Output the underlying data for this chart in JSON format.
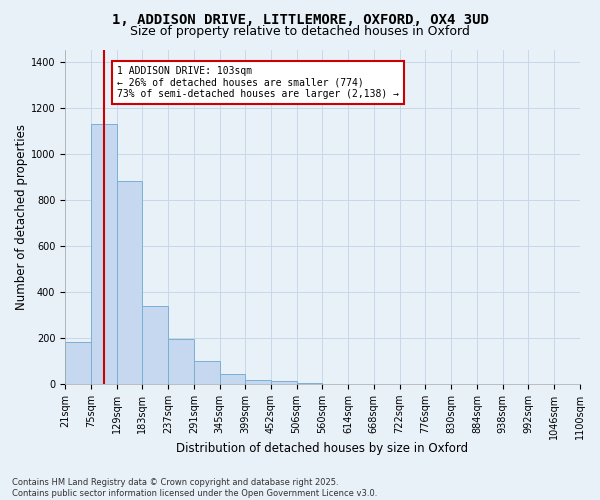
{
  "title_line1": "1, ADDISON DRIVE, LITTLEMORE, OXFORD, OX4 3UD",
  "title_line2": "Size of property relative to detached houses in Oxford",
  "xlabel": "Distribution of detached houses by size in Oxford",
  "ylabel": "Number of detached properties",
  "bar_color": "#c5d8ef",
  "bar_edge_color": "#7aafd4",
  "grid_color": "#c8d8ea",
  "background_color": "#e8f0f8",
  "vline_x": 103,
  "vline_color": "#cc0000",
  "annotation_text": "1 ADDISON DRIVE: 103sqm\n← 26% of detached houses are smaller (774)\n73% of semi-detached houses are larger (2,138) →",
  "annotation_box_color": "#cc0000",
  "bins": [
    21,
    75,
    129,
    183,
    237,
    291,
    345,
    399,
    452,
    506,
    560,
    614,
    668,
    722,
    776,
    830,
    884,
    938,
    992,
    1046,
    1100
  ],
  "bin_labels": [
    "21sqm",
    "75sqm",
    "129sqm",
    "183sqm",
    "237sqm",
    "291sqm",
    "345sqm",
    "399sqm",
    "452sqm",
    "506sqm",
    "560sqm",
    "614sqm",
    "668sqm",
    "722sqm",
    "776sqm",
    "830sqm",
    "884sqm",
    "938sqm",
    "992sqm",
    "1046sqm",
    "1100sqm"
  ],
  "values": [
    185,
    1130,
    880,
    340,
    195,
    100,
    45,
    18,
    12,
    5,
    3,
    1,
    0,
    0,
    0,
    0,
    0,
    0,
    0,
    0
  ],
  "ylim": [
    0,
    1450
  ],
  "yticks": [
    0,
    200,
    400,
    600,
    800,
    1000,
    1200,
    1400
  ],
  "footnote": "Contains HM Land Registry data © Crown copyright and database right 2025.\nContains public sector information licensed under the Open Government Licence v3.0.",
  "title_fontsize": 10,
  "subtitle_fontsize": 9,
  "tick_fontsize": 7,
  "label_fontsize": 8.5
}
